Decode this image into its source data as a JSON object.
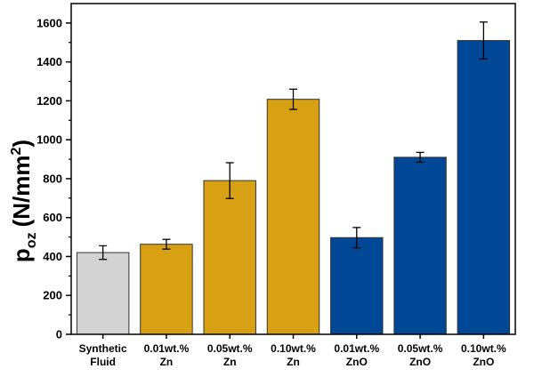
{
  "chart_data": {
    "type": "bar",
    "ylabel": {
      "main": "p",
      "subscript": "oz",
      "unit_prefix": "(N/mm",
      "unit_superscript": "2",
      "unit_suffix": ")"
    },
    "ylim": [
      0,
      1700
    ],
    "yticks": [
      0,
      200,
      400,
      600,
      800,
      1000,
      1200,
      1400,
      1600
    ],
    "categories": [
      [
        "Synthetic",
        "Fluid"
      ],
      [
        "0.01wt.%",
        "Zn"
      ],
      [
        "0.05wt.%",
        "Zn"
      ],
      [
        "0.10wt.%",
        "Zn"
      ],
      [
        "0.01wt.%",
        "ZnO"
      ],
      [
        "0.05wt.%",
        "ZnO"
      ],
      [
        "0.10wt.%",
        "ZnO"
      ]
    ],
    "values": [
      420,
      463,
      790,
      1208,
      497,
      910,
      1510
    ],
    "errors": [
      35,
      25,
      92,
      52,
      52,
      25,
      95
    ],
    "colors": [
      "#d3d3d3",
      "#d8a013",
      "#d8a013",
      "#d8a013",
      "#004896",
      "#004896",
      "#004896"
    ],
    "grid": false,
    "legend": "none"
  }
}
